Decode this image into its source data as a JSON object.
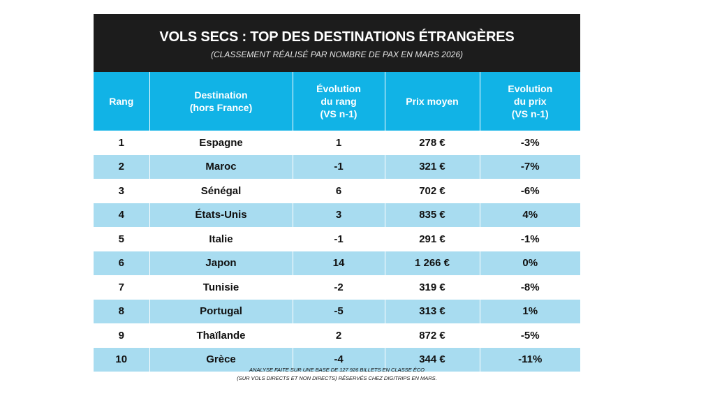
{
  "header": {
    "title": "VOLS SECS : TOP DES DESTINATIONS ÉTRANGÈRES",
    "subtitle": "(CLASSEMENT RÉALISÉ PAR NOMBRE DE PAX EN MARS 2026)"
  },
  "table": {
    "columns": [
      "Rang",
      "Destination\n(hors France)",
      "Évolution\ndu rang\n(VS n-1)",
      "Prix moyen",
      "Evolution\ndu prix\n(VS n-1)"
    ],
    "rows": [
      [
        "1",
        "Espagne",
        "1",
        "278 €",
        "-3%"
      ],
      [
        "2",
        "Maroc",
        "-1",
        "321 €",
        "-7%"
      ],
      [
        "3",
        "Sénégal",
        "6",
        "702 €",
        "-6%"
      ],
      [
        "4",
        "États-Unis",
        "3",
        "835 €",
        "4%"
      ],
      [
        "5",
        "Italie",
        "-1",
        "291 €",
        "-1%"
      ],
      [
        "6",
        "Japon",
        "14",
        "1 266 €",
        "0%"
      ],
      [
        "7",
        "Tunisie",
        "-2",
        "319 €",
        "-8%"
      ],
      [
        "8",
        "Portugal",
        "-5",
        "313 €",
        "1%"
      ],
      [
        "9",
        "Thaïlande",
        "2",
        "872 €",
        "-5%"
      ],
      [
        "10",
        "Grèce",
        "-4",
        "344 €",
        "-11%"
      ]
    ]
  },
  "footnote": {
    "line1": "ANALYSE FAITE SUR UNE BASE DE  127 926 BILLETS EN CLASSE ÉCO",
    "line2": "(SUR VOLS DIRECTS ET NON DIRECTS) RÉSERVÉS CHEZ DIGITRIPS EN MARS."
  },
  "colors": {
    "header_bg": "#1c1c1c",
    "column_header_bg": "#11b3e6",
    "stripe_bg": "#a8dcf0"
  }
}
